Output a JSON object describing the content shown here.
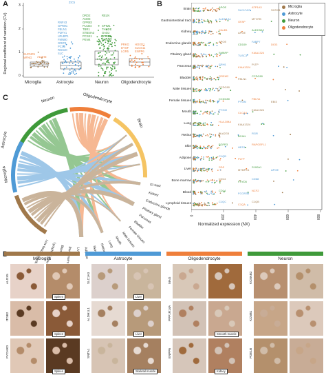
{
  "panels": {
    "a": "A",
    "b": "B",
    "c": "C",
    "d": "D"
  },
  "colors": {
    "microglia": "#a0784a",
    "astrocyte": "#4f9ad6",
    "neuron": "#3f9a3a",
    "oligodendrocyte": "#ef7f3b"
  },
  "panel_a": {
    "ylabel": "Regional coefficient of variation (CV)",
    "yticks": [
      "0",
      "1",
      "2",
      "3"
    ],
    "categories": [
      "Microglia",
      "Astrocyte",
      "Neuron",
      "Oligodendrocyte"
    ],
    "genes": {
      "microglia": [
        "SUCNR1",
        "MFNG",
        "ALDH3"
      ],
      "astrocyte": [
        "ZIC5",
        "RNF43",
        "GPR8C",
        "FBLN1",
        "P2RY1",
        "LRLBP1",
        "FMN80",
        "GRIF8",
        "PCS5",
        "RGS20",
        "SLC"
      ],
      "neuron": [
        "DRD2",
        "RELN",
        "ANO3",
        "GPR83",
        "PLCB4",
        "SPIM1",
        "TBR1",
        "THNDE",
        "STBSIA3",
        "GAD2",
        "HTR2C",
        "NOST3",
        "PCSK1",
        "PENK"
      ],
      "oligodendrocyte": [
        "PRKG",
        "HOXD1",
        "DYSF",
        "SLCS11",
        "LGR5",
        "ENPP6"
      ]
    }
  },
  "panel_b": {
    "xlabel": "Normalized expression (NX)",
    "xticks": [
      "0",
      "200",
      "400",
      "600",
      "800"
    ],
    "legend": [
      "Microglia",
      "Astrocyte",
      "Neuron",
      "Oligodendrocyte"
    ],
    "tissues": [
      "Brain",
      "Gastrointestinal tract",
      "Kidney",
      "Endocrine glands",
      "Pituitary gland",
      "Pancreas",
      "Bladder",
      "Male tissues",
      "Female tissues",
      "Mouth",
      "Lung",
      "Retina",
      "Skin",
      "Adipose",
      "Liver",
      "Bone marrow",
      "Blood",
      "Lymphoid tissues"
    ],
    "genes": [
      [
        "APOE",
        "SLC17A7",
        "ATP1A3",
        "SCRG1"
      ],
      [
        "ALDH1A1",
        "GFAP",
        "MTOTB"
      ],
      [
        "CALB1",
        "APOE",
        "ALDH3A2"
      ],
      [
        "APOE",
        "CD109",
        "FABP7",
        "DIO3"
      ],
      [
        "SMBFP",
        "TUSC3",
        "KIAA1324"
      ],
      [
        "CRH1",
        "KIAA1324",
        "PLTP"
      ],
      [
        "GREM2",
        "FBLN1",
        "CCDC80"
      ],
      [
        "CCDC80"
      ],
      [
        "CCDC80",
        "PYGM",
        "FBLN1",
        "EBI3"
      ],
      [
        "PYGM",
        "CLCA4",
        "KIAA1324"
      ],
      [
        "HLA-DMA",
        "KIAA1324"
      ],
      [
        "PLA2G5",
        "BCAN",
        "RGR"
      ],
      [
        "FGFR3",
        "HES1",
        "RAPGEFL1"
      ],
      [
        "C1QB",
        "PLTP"
      ],
      [
        "SDS",
        "MYBPC1",
        "S100A1",
        "APOE"
      ],
      [
        "CD14",
        "FXYD5",
        "CD68"
      ],
      [
        "CD14",
        "FCGR3B",
        "NCF2"
      ],
      [
        "C1QC",
        "C1QA",
        "C1QB"
      ]
    ]
  },
  "panel_c": {
    "segments": [
      "Neuron",
      "Oligodendrocyte",
      "Brain",
      "Astrocyte",
      "Microglia"
    ],
    "legend": [
      "GI tract",
      "Kidney",
      "Endocrine glands",
      "Pituitary gland",
      "Pancreas",
      "Bladder",
      "Female tissues",
      "Male tissues",
      "Mouth",
      "Lung",
      "Retina",
      "Skin",
      "Adipose",
      "Liver",
      "Bone marrow",
      "Blood",
      "Lymphoid tissues",
      "Low tissue specificity"
    ]
  },
  "panel_d": {
    "columns": [
      {
        "title": "Microglia",
        "color": "#a0784a",
        "genes": [
          "ALOX5",
          "ITGB2",
          "PYCARD"
        ],
        "tags": [
          "Spleen",
          "Spleen",
          "Spleen"
        ]
      },
      {
        "title": "Astrocyte",
        "color": "#4f9ad6",
        "genes": [
          "SLC1A3",
          "ALDH1L1",
          "SNTA1"
        ],
        "tags": [
          "Liver",
          "Liver",
          "Skeletal muscle"
        ]
      },
      {
        "title": "Oligodendrocyte",
        "color": "#ef7f3b",
        "genes": [
          "MAG",
          "PPP1R14A",
          "ENPP6"
        ],
        "tags": [
          "",
          "Smooth muscle",
          "Kidney"
        ]
      },
      {
        "title": "Neuron",
        "color": "#3f9a3a",
        "genes": [
          "KCNAB2",
          "KCNB1",
          "PDE1B"
        ],
        "tags": [
          "",
          "",
          ""
        ]
      }
    ]
  }
}
